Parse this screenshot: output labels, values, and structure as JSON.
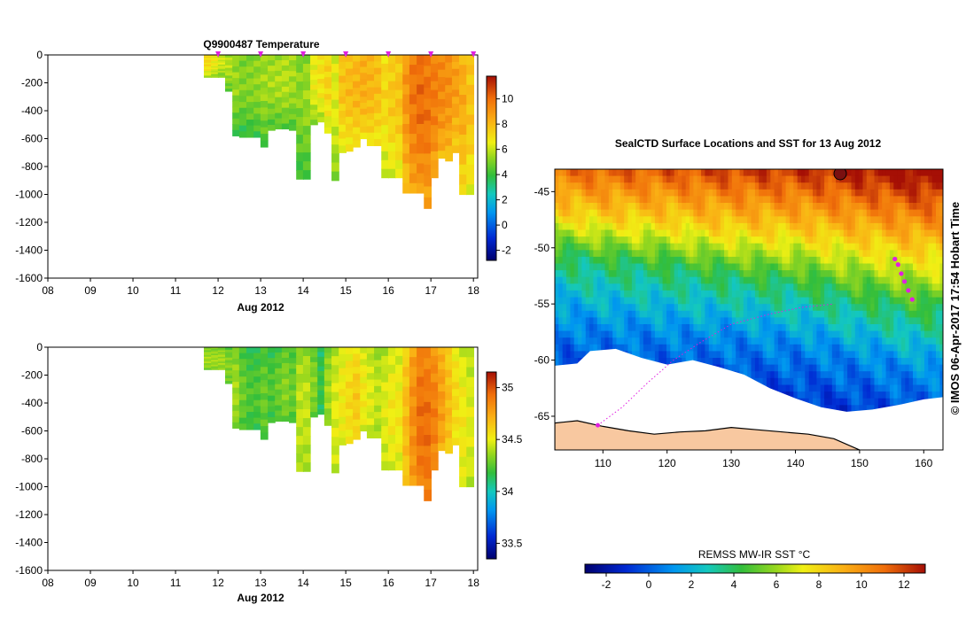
{
  "chart_data": [
    {
      "type": "heatmap",
      "title": "Q9900487  Temperature",
      "xlabel": "Aug 2012",
      "ylabel": "",
      "x_tick_labels": [
        "08",
        "09",
        "10",
        "11",
        "12",
        "13",
        "14",
        "15",
        "16",
        "17",
        "18"
      ],
      "x_ticks": [
        8,
        9,
        10,
        11,
        12,
        13,
        14,
        15,
        16,
        17,
        18
      ],
      "xlim": [
        8,
        18.1
      ],
      "y_ticks": [
        0,
        -200,
        -400,
        -600,
        -800,
        -1000,
        -1200,
        -1400,
        -1600
      ],
      "ylim": [
        -1600,
        0
      ],
      "surfacing_markers_day": [
        12,
        13,
        14,
        15,
        16,
        17,
        18
      ],
      "colorbar": {
        "ticks": [
          -2,
          0,
          2,
          4,
          6,
          8,
          10
        ],
        "range": [
          -2.8,
          11.8
        ]
      },
      "profiles": [
        {
          "day": 11.75,
          "bottom": -160,
          "value": 7.0
        },
        {
          "day": 11.92,
          "bottom": -160,
          "value": 6.5
        },
        {
          "day": 12.08,
          "bottom": -160,
          "value": 6.0
        },
        {
          "day": 12.25,
          "bottom": -260,
          "value": 5.6
        },
        {
          "day": 12.42,
          "bottom": -580,
          "value": 5.2
        },
        {
          "day": 12.58,
          "bottom": -590,
          "value": 4.9
        },
        {
          "day": 12.75,
          "bottom": -590,
          "value": 5.0
        },
        {
          "day": 12.92,
          "bottom": -590,
          "value": 5.1
        },
        {
          "day": 13.08,
          "bottom": -660,
          "value": 5.3
        },
        {
          "day": 13.25,
          "bottom": -540,
          "value": 5.4
        },
        {
          "day": 13.42,
          "bottom": -530,
          "value": 5.5
        },
        {
          "day": 13.58,
          "bottom": -530,
          "value": 5.6
        },
        {
          "day": 13.75,
          "bottom": -540,
          "value": 5.4
        },
        {
          "day": 13.92,
          "bottom": -890,
          "value": 5.0
        },
        {
          "day": 14.08,
          "bottom": -890,
          "value": 5.2
        },
        {
          "day": 14.25,
          "bottom": -500,
          "value": 6.4
        },
        {
          "day": 14.42,
          "bottom": -480,
          "value": 6.8
        },
        {
          "day": 14.58,
          "bottom": -560,
          "value": 7.2
        },
        {
          "day": 14.75,
          "bottom": -900,
          "value": 6.2
        },
        {
          "day": 14.92,
          "bottom": -700,
          "value": 7.6
        },
        {
          "day": 15.08,
          "bottom": -690,
          "value": 7.8
        },
        {
          "day": 15.25,
          "bottom": -660,
          "value": 8.0
        },
        {
          "day": 15.42,
          "bottom": -600,
          "value": 8.2
        },
        {
          "day": 15.58,
          "bottom": -650,
          "value": 8.0
        },
        {
          "day": 15.75,
          "bottom": -650,
          "value": 7.8
        },
        {
          "day": 15.92,
          "bottom": -880,
          "value": 7.0
        },
        {
          "day": 16.08,
          "bottom": -880,
          "value": 7.4
        },
        {
          "day": 16.25,
          "bottom": -880,
          "value": 7.6
        },
        {
          "day": 16.42,
          "bottom": -990,
          "value": 8.8
        },
        {
          "day": 16.58,
          "bottom": -990,
          "value": 9.6
        },
        {
          "day": 16.75,
          "bottom": -990,
          "value": 9.9
        },
        {
          "day": 16.92,
          "bottom": -1100,
          "value": 9.7
        },
        {
          "day": 17.08,
          "bottom": -880,
          "value": 9.5
        },
        {
          "day": 17.25,
          "bottom": -740,
          "value": 9.2
        },
        {
          "day": 17.42,
          "bottom": -760,
          "value": 9.0
        },
        {
          "day": 17.58,
          "bottom": -700,
          "value": 8.6
        },
        {
          "day": 17.75,
          "bottom": -1000,
          "value": 8.2
        },
        {
          "day": 17.92,
          "bottom": -1000,
          "value": 7.6
        }
      ]
    },
    {
      "type": "heatmap",
      "title": "",
      "xlabel": "Aug 2012",
      "ylabel": "",
      "x_tick_labels": [
        "08",
        "09",
        "10",
        "11",
        "12",
        "13",
        "14",
        "15",
        "16",
        "17",
        "18"
      ],
      "x_ticks": [
        8,
        9,
        10,
        11,
        12,
        13,
        14,
        15,
        16,
        17,
        18
      ],
      "xlim": [
        8,
        18.1
      ],
      "y_ticks": [
        0,
        -200,
        -400,
        -600,
        -800,
        -1000,
        -1200,
        -1400,
        -1600
      ],
      "ylim": [
        -1600,
        0
      ],
      "colorbar": {
        "ticks": [
          33.5,
          34,
          34.5,
          35
        ],
        "tick_labels": [
          "33.5",
          "34",
          "34.5",
          "35"
        ],
        "range": [
          33.35,
          35.15
        ]
      },
      "profiles": [
        {
          "day": 11.75,
          "bottom": -160,
          "value": 34.3
        },
        {
          "day": 11.92,
          "bottom": -160,
          "value": 34.3
        },
        {
          "day": 12.08,
          "bottom": -160,
          "value": 34.3
        },
        {
          "day": 12.25,
          "bottom": -260,
          "value": 34.25
        },
        {
          "day": 12.42,
          "bottom": -580,
          "value": 34.3
        },
        {
          "day": 12.58,
          "bottom": -590,
          "value": 34.2
        },
        {
          "day": 12.75,
          "bottom": -590,
          "value": 34.15
        },
        {
          "day": 12.92,
          "bottom": -590,
          "value": 34.15
        },
        {
          "day": 13.08,
          "bottom": -660,
          "value": 34.2
        },
        {
          "day": 13.25,
          "bottom": -540,
          "value": 34.15
        },
        {
          "day": 13.42,
          "bottom": -530,
          "value": 34.2
        },
        {
          "day": 13.58,
          "bottom": -530,
          "value": 34.25
        },
        {
          "day": 13.75,
          "bottom": -540,
          "value": 34.2
        },
        {
          "day": 13.92,
          "bottom": -890,
          "value": 34.35
        },
        {
          "day": 14.08,
          "bottom": -890,
          "value": 34.35
        },
        {
          "day": 14.25,
          "bottom": -500,
          "value": 34.25
        },
        {
          "day": 14.42,
          "bottom": -480,
          "value": 34.1
        },
        {
          "day": 14.58,
          "bottom": -560,
          "value": 34.3
        },
        {
          "day": 14.75,
          "bottom": -900,
          "value": 34.4
        },
        {
          "day": 14.92,
          "bottom": -700,
          "value": 34.45
        },
        {
          "day": 15.08,
          "bottom": -690,
          "value": 34.5
        },
        {
          "day": 15.25,
          "bottom": -660,
          "value": 34.55
        },
        {
          "day": 15.42,
          "bottom": -600,
          "value": 34.45
        },
        {
          "day": 15.58,
          "bottom": -650,
          "value": 34.4
        },
        {
          "day": 15.75,
          "bottom": -650,
          "value": 34.35
        },
        {
          "day": 15.92,
          "bottom": -880,
          "value": 34.4
        },
        {
          "day": 16.08,
          "bottom": -880,
          "value": 34.45
        },
        {
          "day": 16.25,
          "bottom": -880,
          "value": 34.45
        },
        {
          "day": 16.42,
          "bottom": -990,
          "value": 34.6
        },
        {
          "day": 16.58,
          "bottom": -990,
          "value": 34.75
        },
        {
          "day": 16.75,
          "bottom": -990,
          "value": 34.85
        },
        {
          "day": 16.92,
          "bottom": -1100,
          "value": 34.85
        },
        {
          "day": 17.08,
          "bottom": -880,
          "value": 34.8
        },
        {
          "day": 17.25,
          "bottom": -740,
          "value": 34.7
        },
        {
          "day": 17.42,
          "bottom": -760,
          "value": 34.6
        },
        {
          "day": 17.58,
          "bottom": -700,
          "value": 34.5
        },
        {
          "day": 17.75,
          "bottom": -1000,
          "value": 34.45
        },
        {
          "day": 17.92,
          "bottom": -1000,
          "value": 34.4
        }
      ]
    },
    {
      "type": "heatmap",
      "title": "SealCTD Surface Locations and SST for 13 Aug 2012",
      "xlabel": "",
      "ylabel": "",
      "x_ticks": [
        110,
        120,
        130,
        140,
        150,
        160
      ],
      "xlim": [
        102.5,
        163
      ],
      "y_ticks": [
        -45,
        -50,
        -55,
        -60,
        -65
      ],
      "ylim": [
        -68,
        -43
      ],
      "colorbar": {
        "label": "REMSS MW-IR SST °C",
        "ticks": [
          -2,
          0,
          2,
          4,
          6,
          8,
          10,
          12
        ],
        "range": [
          -3,
          13
        ]
      },
      "sst_front_lat_by_lon": [
        {
          "lon": 102,
          "t8": -47.0,
          "t4": -50.5,
          "t1": -56.5
        },
        {
          "lon": 110,
          "t8": -47.5,
          "t4": -51.2,
          "t1": -57.0
        },
        {
          "lon": 120,
          "t8": -47.8,
          "t4": -51.8,
          "t1": -57.5
        },
        {
          "lon": 130,
          "t8": -48.5,
          "t4": -52.6,
          "t1": -57.8
        },
        {
          "lon": 140,
          "t8": -48.8,
          "t4": -53.2,
          "t1": -58.5
        },
        {
          "lon": 150,
          "t8": -49.6,
          "t4": -54.6,
          "t1": -59.6
        },
        {
          "lon": 160,
          "t8": -50.5,
          "t4": -55.8,
          "t1": -61.0
        }
      ],
      "float_track": [
        {
          "lon": 109.2,
          "lat": -65.8
        },
        {
          "lon": 113,
          "lat": -64.2
        },
        {
          "lon": 117,
          "lat": -62.0
        },
        {
          "lon": 121,
          "lat": -60.0
        },
        {
          "lon": 125,
          "lat": -58.5
        },
        {
          "lon": 130,
          "lat": -56.8
        },
        {
          "lon": 136,
          "lat": -55.9
        },
        {
          "lon": 141,
          "lat": -55.3
        },
        {
          "lon": 146,
          "lat": -55.0
        }
      ],
      "current_surface_positions": [
        {
          "lon": 155.5,
          "lat": -51.0
        },
        {
          "lon": 156.0,
          "lat": -51.5
        },
        {
          "lon": 156.5,
          "lat": -52.3
        },
        {
          "lon": 157.0,
          "lat": -53.0
        },
        {
          "lon": 157.6,
          "lat": -53.8
        },
        {
          "lon": 158.2,
          "lat": -54.6
        }
      ]
    }
  ],
  "credit": "© IMOS 06-Apr-2017 17:54 Hobart Time",
  "colors": {
    "marker": "#e020e0",
    "land": "#f8c8a0",
    "ice": "#ffffff"
  }
}
